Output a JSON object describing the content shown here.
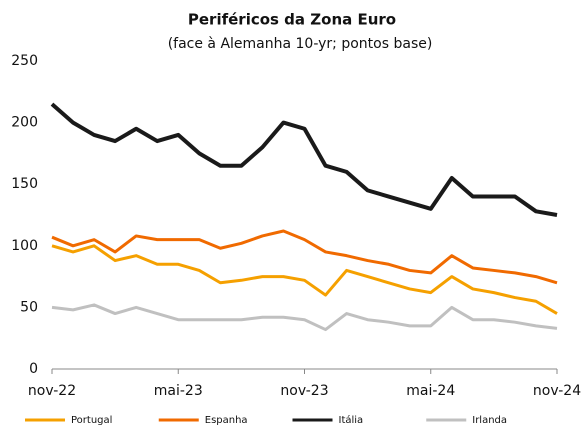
{
  "chart_data": {
    "type": "line",
    "title": "Periféricos da Zona Euro",
    "subtitle": "(face à Alemanha 10-yr; pontos base)",
    "x": [
      "2022-11",
      "2022-12",
      "2023-01",
      "2023-02",
      "2023-03",
      "2023-04",
      "2023-05",
      "2023-06",
      "2023-07",
      "2023-08",
      "2023-09",
      "2023-10",
      "2023-11",
      "2023-12",
      "2024-01",
      "2024-02",
      "2024-03",
      "2024-04",
      "2024-05",
      "2024-06",
      "2024-07",
      "2024-08",
      "2024-09",
      "2024-10",
      "2024-11"
    ],
    "xlim": [
      "2022-11",
      "2024-11"
    ],
    "xticks": [
      {
        "value": "2022-11",
        "label": "nov-22"
      },
      {
        "value": "2023-05",
        "label": "mai-23"
      },
      {
        "value": "2023-11",
        "label": "nov-23"
      },
      {
        "value": "2024-05",
        "label": "mai-24"
      },
      {
        "value": "2024-11",
        "label": "nov-24"
      }
    ],
    "ylim": [
      0,
      250
    ],
    "yticks": [
      0,
      50,
      100,
      150,
      200,
      250
    ],
    "legend": "bottom",
    "series": [
      {
        "name": "Portugal",
        "color": "#f5a000",
        "values": [
          100,
          95,
          100,
          88,
          92,
          85,
          85,
          80,
          70,
          72,
          75,
          75,
          72,
          60,
          80,
          75,
          70,
          65,
          62,
          75,
          65,
          62,
          58,
          55,
          45
        ]
      },
      {
        "name": "Espanha",
        "color": "#f06a00",
        "values": [
          107,
          100,
          105,
          95,
          108,
          105,
          105,
          105,
          98,
          102,
          108,
          112,
          105,
          95,
          92,
          88,
          85,
          80,
          78,
          92,
          82,
          80,
          78,
          75,
          70
        ]
      },
      {
        "name": "Itália",
        "color": "#1a1a1a",
        "values": [
          215,
          200,
          190,
          185,
          195,
          185,
          190,
          175,
          165,
          165,
          180,
          200,
          195,
          165,
          160,
          145,
          140,
          135,
          130,
          155,
          140,
          140,
          140,
          128,
          125
        ]
      },
      {
        "name": "Irlanda",
        "color": "#c0c0c0",
        "values": [
          50,
          48,
          52,
          45,
          50,
          45,
          40,
          40,
          40,
          40,
          42,
          42,
          40,
          32,
          45,
          40,
          38,
          35,
          35,
          50,
          40,
          40,
          38,
          35,
          33
        ]
      }
    ]
  }
}
